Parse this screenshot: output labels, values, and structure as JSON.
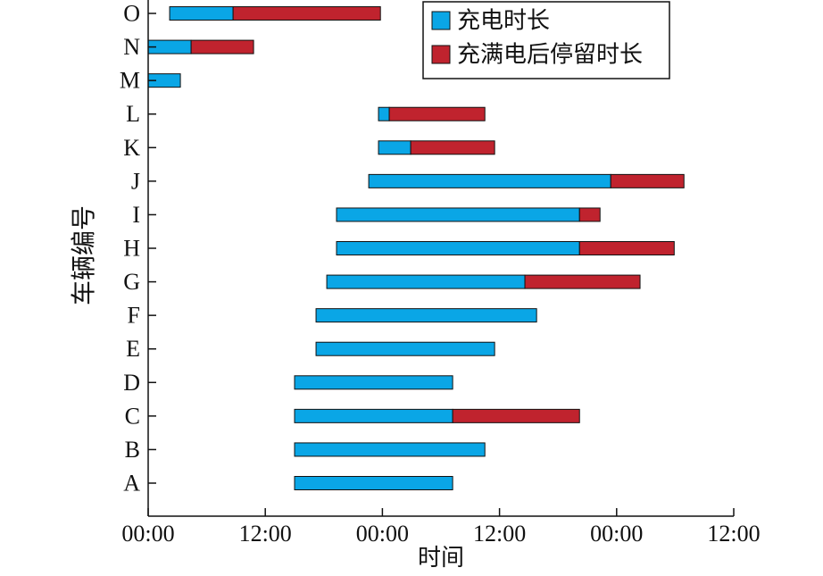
{
  "chart_data": {
    "type": "bar",
    "orientation": "horizontal",
    "stacked": true,
    "title": "",
    "xlabel": "时间",
    "ylabel": "车辆编号",
    "x_unit": "hours",
    "xlim": [
      0,
      60
    ],
    "x_ticks": [
      0,
      12,
      24,
      36,
      48,
      60
    ],
    "x_tick_labels": [
      "00:00",
      "12:00",
      "00:00",
      "12:00",
      "00:00",
      "12:00"
    ],
    "categories": [
      "A",
      "B",
      "C",
      "D",
      "E",
      "F",
      "G",
      "H",
      "I",
      "J",
      "K",
      "L",
      "M",
      "N",
      "O"
    ],
    "series": [
      {
        "name": "充电时长",
        "color": "#0aa6e6",
        "segments": [
          [
            15.0,
            31.2
          ],
          [
            15.0,
            34.5
          ],
          [
            15.0,
            31.2
          ],
          [
            15.0,
            31.2
          ],
          [
            17.2,
            35.5
          ],
          [
            17.2,
            39.8
          ],
          [
            18.3,
            38.6
          ],
          [
            19.3,
            44.2
          ],
          [
            19.3,
            44.2
          ],
          [
            22.6,
            47.4
          ],
          [
            23.6,
            26.9
          ],
          [
            23.6,
            24.7
          ],
          [
            0.0,
            3.3
          ],
          [
            0.0,
            4.4
          ],
          [
            2.2,
            8.7
          ]
        ]
      },
      {
        "name": "充满电后停留时长",
        "color": "#c0232e",
        "segments": [
          null,
          null,
          [
            31.2,
            44.2
          ],
          null,
          null,
          null,
          [
            38.6,
            50.4
          ],
          [
            44.2,
            53.9
          ],
          [
            44.2,
            46.3
          ],
          [
            47.4,
            54.9
          ],
          [
            26.9,
            35.5
          ],
          [
            24.7,
            34.5
          ],
          null,
          [
            4.4,
            10.8
          ],
          [
            8.7,
            23.8
          ]
        ]
      }
    ],
    "legend_position": "top-right",
    "grid": false
  }
}
